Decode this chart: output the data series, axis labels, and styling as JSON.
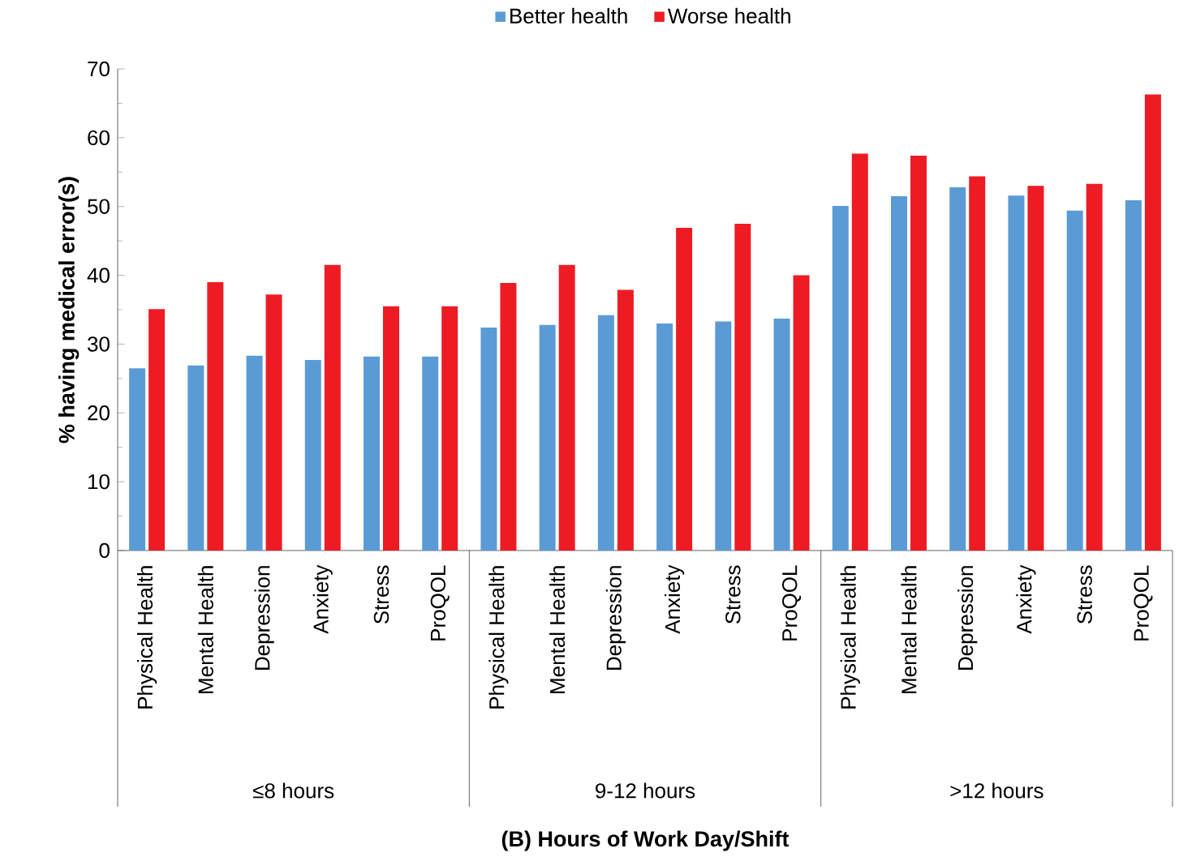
{
  "chart_data": {
    "type": "bar",
    "ylabel": "% having medical error(s)",
    "categories": [
      "Physical Health",
      "Mental Health",
      "Depression",
      "Anxiety",
      "Stress",
      "ProQOL",
      "Physical Health",
      "Mental Health",
      "Depression",
      "Anxiety",
      "Stress",
      "ProQOL",
      "Physical Health",
      "Mental Health",
      "Depression",
      "Anxiety",
      "Stress",
      "ProQOL"
    ],
    "series": [
      {
        "name": "Better  health",
        "color": "#5b9bd5",
        "values": [
          26.5,
          26.9,
          28.3,
          27.7,
          28.2,
          28.2,
          32.4,
          32.8,
          34.2,
          33.0,
          33.3,
          33.7,
          50.1,
          51.5,
          52.8,
          51.6,
          49.4,
          50.9
        ]
      },
      {
        "name": "Worse health",
        "color": "#ed1c24",
        "values": [
          35.1,
          39.0,
          37.2,
          41.5,
          35.5,
          35.5,
          38.9,
          41.5,
          37.9,
          46.9,
          47.5,
          40.0,
          57.7,
          57.4,
          54.4,
          53.0,
          53.3,
          66.3
        ]
      }
    ],
    "annotations": [
      "≤8 hours",
      "9-12 hours",
      ">12 hours",
      "(B) Hours of Work Day/Shift"
    ],
    "ylim": [
      0,
      70
    ],
    "yticks": [
      0,
      10,
      20,
      30,
      40,
      50,
      60,
      70
    ],
    "legend": "top"
  }
}
